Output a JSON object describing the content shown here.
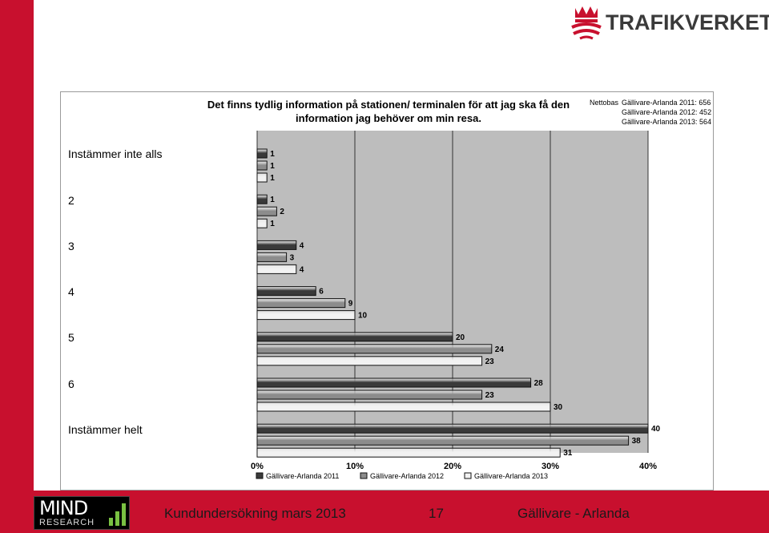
{
  "brand": {
    "name": "TRAFIKVERKET"
  },
  "netto": {
    "label": "Nettobas",
    "lines": [
      "Gällivare-Arlanda 2011: 656",
      "Gällivare-Arlanda 2012: 452",
      "Gällivare-Arlanda 2013: 564"
    ]
  },
  "footer": {
    "mind_logo": "MIND",
    "mind_sub": "RESEARCH",
    "survey": "Kundundersökning mars 2013",
    "page_number": "17",
    "route": "Gällivare - Arlanda"
  },
  "colors": {
    "accent": "#c8102e",
    "plot_bg": "#bdbdbd"
  },
  "chart_data": {
    "type": "bar",
    "orientation": "horizontal",
    "title": "Det finns tydlig information på stationen/ terminalen för att jag ska få den information jag behöver om min resa.",
    "categories": [
      "Instämmer inte alls",
      "2",
      "3",
      "4",
      "5",
      "6",
      "Instämmer helt"
    ],
    "series": [
      {
        "name": "Gällivare-Arlanda 2011",
        "color": "#3a3a3a",
        "values": [
          1,
          1,
          4,
          6,
          20,
          28,
          40
        ]
      },
      {
        "name": "Gällivare-Arlanda 2012",
        "color": "#8c8c8c",
        "values": [
          1,
          2,
          3,
          9,
          24,
          23,
          38
        ]
      },
      {
        "name": "Gällivare-Arlanda 2013",
        "color": "#f2f2f2",
        "values": [
          1,
          1,
          4,
          10,
          23,
          30,
          31
        ]
      }
    ],
    "xlim": [
      0,
      40
    ],
    "x_ticks": [
      "0%",
      "10%",
      "20%",
      "30%",
      "40%"
    ],
    "grid": true,
    "legend_position": "bottom"
  }
}
